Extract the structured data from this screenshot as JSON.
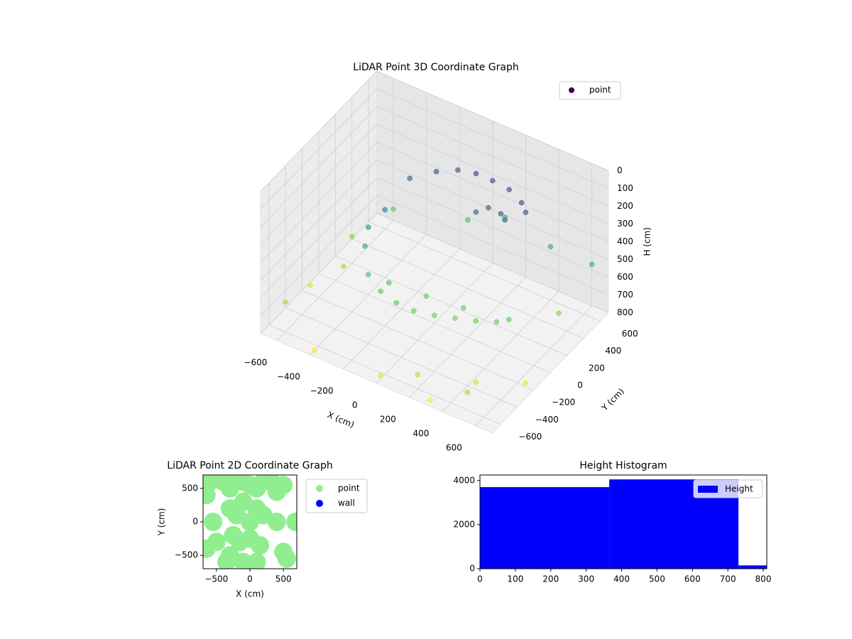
{
  "chart_data": [
    {
      "type": "scatter3d",
      "title": "LiDAR Point 3D Coordinate Graph",
      "xlabel": "X (cm)",
      "ylabel": "Y (cm)",
      "zlabel": "H (cm)",
      "colormap": "viridis",
      "legend": "upper right",
      "xlim": [
        -700,
        700
      ],
      "ylim": [
        -700,
        700
      ],
      "zlim": [
        800,
        0
      ],
      "xticks": [
        {
          "value": -600,
          "label": "−600"
        },
        {
          "value": -400,
          "label": "−400"
        },
        {
          "value": -200,
          "label": "−200"
        },
        0,
        200,
        400,
        600
      ],
      "yticks": [
        {
          "value": -600,
          "label": "−600"
        },
        {
          "value": -400,
          "label": "−400"
        },
        {
          "value": -200,
          "label": "−200"
        },
        0,
        200,
        400,
        600
      ],
      "zticks": [
        0,
        100,
        200,
        300,
        400,
        500,
        600,
        700,
        800
      ],
      "series": [
        {
          "name": "point",
          "color": "#440154",
          "x": [
            -300,
            -200,
            -100,
            0,
            100,
            200,
            300,
            350,
            150,
            100,
            -350,
            -400,
            -380,
            -300,
            -200,
            -100,
            0,
            100,
            200,
            300,
            400,
            450,
            -200,
            0,
            200,
            250,
            300,
            -650,
            -600,
            -500,
            500,
            600,
            400,
            -100,
            0,
            300,
            -400,
            650,
            650,
            -650,
            200,
            450,
            -550,
            100
          ],
          "y": [
            300,
            420,
            480,
            500,
            500,
            500,
            450,
            400,
            350,
            300,
            100,
            0,
            -80,
            -200,
            -250,
            -260,
            -250,
            -200,
            -150,
            -100,
            -50,
            0,
            -150,
            -100,
            -50,
            300,
            250,
            -500,
            200,
            500,
            -600,
            300,
            600,
            600,
            -650,
            -650,
            -650,
            -200,
            600,
            -200,
            -600,
            -400,
            0,
            650
          ],
          "z": [
            250,
            230,
            210,
            200,
            200,
            210,
            220,
            230,
            260,
            280,
            350,
            420,
            480,
            550,
            580,
            600,
            610,
            620,
            620,
            620,
            610,
            600,
            580,
            600,
            610,
            230,
            220,
            700,
            650,
            600,
            700,
            650,
            500,
            550,
            780,
            800,
            800,
            780,
            500,
            750,
            720,
            760,
            700,
            480
          ]
        }
      ]
    },
    {
      "type": "scatter",
      "title": "LiDAR Point 2D Coordinate Graph",
      "xlabel": "X (cm)",
      "ylabel": "Y (cm)",
      "legend": "outside right",
      "xlim": [
        -700,
        700
      ],
      "ylim": [
        -700,
        700
      ],
      "xticks": [
        {
          "value": -500,
          "label": "−500"
        },
        0,
        500
      ],
      "yticks": [
        {
          "value": -500,
          "label": "−500"
        },
        0,
        500
      ],
      "series": [
        {
          "name": "point",
          "color": "#90ee90",
          "x": [
            -600,
            -650,
            -550,
            -400,
            -300,
            -200,
            -100,
            0,
            100,
            200,
            300,
            400,
            500,
            -300,
            -200,
            -100,
            0,
            100,
            200,
            -250,
            -150,
            0,
            150,
            -300,
            -100,
            100,
            500,
            550,
            400,
            680,
            -650,
            -500,
            -350
          ],
          "values": [
            600,
            400,
            0,
            600,
            500,
            650,
            600,
            550,
            500,
            600,
            650,
            450,
            550,
            200,
            100,
            300,
            0,
            200,
            100,
            -200,
            -300,
            -250,
            -350,
            -500,
            -600,
            -600,
            -450,
            -550,
            0,
            0,
            -400,
            -300,
            -600
          ]
        },
        {
          "name": "wall",
          "color": "#0000ff",
          "x": [],
          "values": []
        }
      ]
    },
    {
      "type": "histogram",
      "title": "Height Histogram",
      "legend": "upper right",
      "xlim": [
        0,
        810
      ],
      "ylim": [
        0,
        4250
      ],
      "xticks": [
        0,
        100,
        200,
        300,
        400,
        500,
        600,
        700,
        800
      ],
      "yticks": [
        0,
        2000,
        4000
      ],
      "bins": [
        0,
        365,
        730,
        810
      ],
      "values": [
        3700,
        4050,
        150
      ],
      "series": [
        {
          "name": "Height",
          "color": "#0000ff"
        }
      ]
    }
  ]
}
